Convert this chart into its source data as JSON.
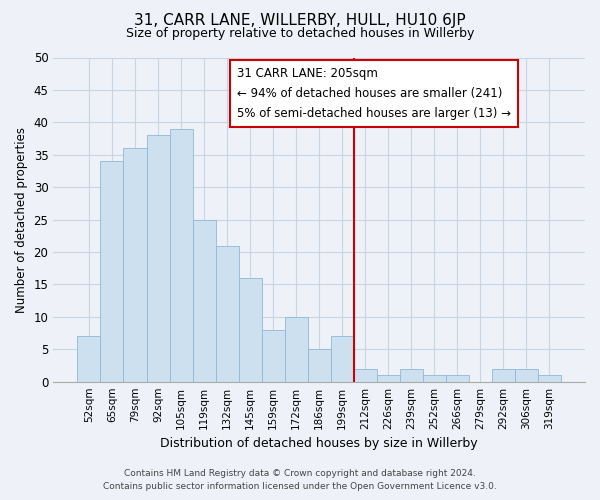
{
  "title": "31, CARR LANE, WILLERBY, HULL, HU10 6JP",
  "subtitle": "Size of property relative to detached houses in Willerby",
  "xlabel": "Distribution of detached houses by size in Willerby",
  "ylabel": "Number of detached properties",
  "categories": [
    "52sqm",
    "65sqm",
    "79sqm",
    "92sqm",
    "105sqm",
    "119sqm",
    "132sqm",
    "145sqm",
    "159sqm",
    "172sqm",
    "186sqm",
    "199sqm",
    "212sqm",
    "226sqm",
    "239sqm",
    "252sqm",
    "266sqm",
    "279sqm",
    "292sqm",
    "306sqm",
    "319sqm"
  ],
  "values": [
    7,
    34,
    36,
    38,
    39,
    25,
    21,
    16,
    8,
    10,
    5,
    7,
    2,
    1,
    2,
    1,
    1,
    0,
    2,
    2,
    1
  ],
  "bar_color": "#cce0f0",
  "bar_edge_color": "#90b8d8",
  "grid_color": "#c8d4e4",
  "vline_x_index": 11.5,
  "vline_color": "#cc0000",
  "annotation_title": "31 CARR LANE: 205sqm",
  "annotation_line1": "← 94% of detached houses are smaller (241)",
  "annotation_line2": "5% of semi-detached houses are larger (13) →",
  "annotation_box_color": "#ffffff",
  "annotation_border_color": "#cc0000",
  "footer_line1": "Contains HM Land Registry data © Crown copyright and database right 2024.",
  "footer_line2": "Contains public sector information licensed under the Open Government Licence v3.0.",
  "ylim": [
    0,
    50
  ],
  "yticks": [
    0,
    5,
    10,
    15,
    20,
    25,
    30,
    35,
    40,
    45,
    50
  ],
  "background_color": "#eef2f8",
  "title_fontsize": 11,
  "subtitle_fontsize": 9
}
